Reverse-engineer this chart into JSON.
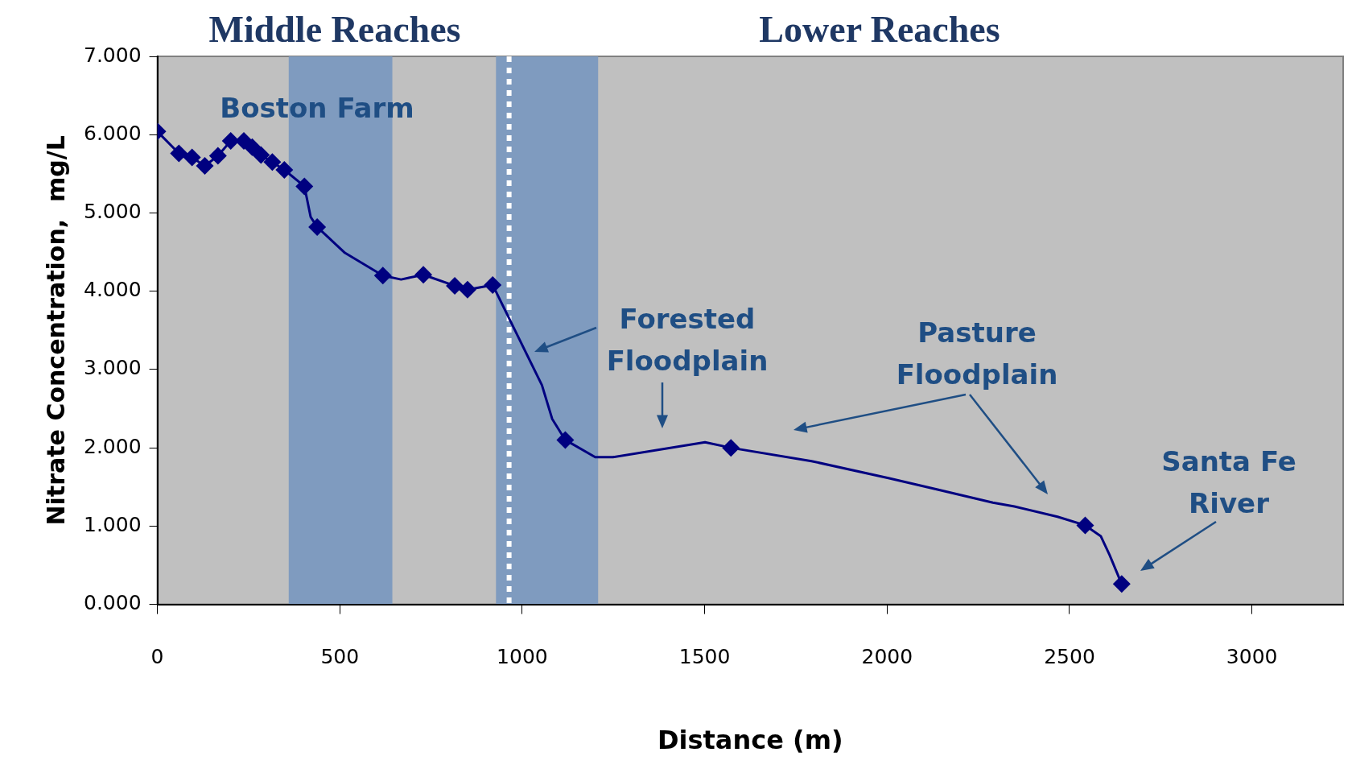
{
  "chart_data": {
    "type": "line",
    "xlabel": "Distance (m)",
    "ylabel": "Nitrate Concentration,  mg/L",
    "xlim": [
      0,
      3250
    ],
    "xticks": [
      0,
      500,
      1000,
      1500,
      2000,
      2500,
      3000
    ],
    "ylim": [
      0,
      7
    ],
    "yticks": [
      {
        "value": 0,
        "label": "0.000"
      },
      {
        "value": 1,
        "label": "1.000"
      },
      {
        "value": 2,
        "label": "2.000"
      },
      {
        "value": 3,
        "label": "3.000"
      },
      {
        "value": 4,
        "label": "4.000"
      },
      {
        "value": 5,
        "label": "5.000"
      },
      {
        "value": 6,
        "label": "6.000"
      },
      {
        "value": 7,
        "label": "7.000"
      }
    ],
    "grid": false,
    "legend": false,
    "series": [
      {
        "marker": "none",
        "line_style": "solid",
        "color": "#000080",
        "x": [
          0,
          59,
          95,
          130,
          166,
          201,
          237,
          260,
          284,
          315,
          348,
          403,
          420,
          438,
          514,
          618,
          668,
          729,
          815,
          850,
          919,
          1054,
          1082,
          1118,
          1200,
          1248,
          1501,
          1572,
          1793,
          2006,
          2136,
          2290,
          2349,
          2467,
          2543,
          2586,
          2610,
          2643
        ],
        "values": [
          6.04,
          5.76,
          5.71,
          5.6,
          5.73,
          5.92,
          5.92,
          5.84,
          5.74,
          5.65,
          5.55,
          5.34,
          4.95,
          4.82,
          4.49,
          4.2,
          4.15,
          4.21,
          4.07,
          4.02,
          4.08,
          2.8,
          2.37,
          2.1,
          1.88,
          1.88,
          2.07,
          2.0,
          1.83,
          1.61,
          1.47,
          1.3,
          1.25,
          1.12,
          1.01,
          0.87,
          0.63,
          0.26
        ]
      },
      {
        "type": "scatter",
        "marker": "diamond",
        "color": "#000080",
        "x": [
          0,
          59,
          95,
          130,
          166,
          201,
          237,
          260,
          284,
          315,
          348,
          403,
          438,
          618,
          729,
          815,
          850,
          919,
          1118,
          1572,
          2543,
          2643
        ],
        "values": [
          6.04,
          5.76,
          5.71,
          5.6,
          5.73,
          5.92,
          5.92,
          5.84,
          5.74,
          5.65,
          5.55,
          5.34,
          4.82,
          4.2,
          4.21,
          4.07,
          4.02,
          4.08,
          2.1,
          2.0,
          1.01,
          0.26
        ]
      }
    ],
    "bands": [
      {
        "axis": "x",
        "from": 360,
        "to": 644,
        "color": "#7f9bbf"
      },
      {
        "axis": "x",
        "from": 928,
        "to": 1208,
        "color": "#7f9bbf"
      }
    ],
    "ref_lines": [
      {
        "axis": "x",
        "value": 964,
        "color": "#ffffff",
        "line_style": "dotted"
      }
    ],
    "annotations": [
      "Middle Reaches",
      "Lower Reaches",
      "Boston Farm",
      "Forested\nFloodplain",
      "Pasture\nFloodplain",
      "Santa Fe\nRiver"
    ]
  }
}
